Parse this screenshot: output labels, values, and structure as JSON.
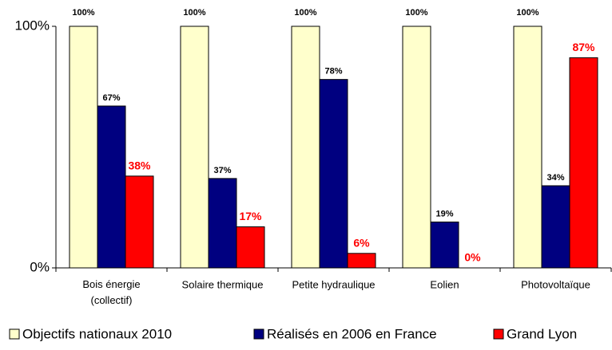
{
  "chart_data": {
    "type": "bar",
    "categories": [
      "Bois énergie\n(collectif)",
      "Solaire thermique",
      "Petite hydraulique",
      "Eolien",
      "Photovoltaïque"
    ],
    "series": [
      {
        "name": "Objectifs nationaux 2010",
        "color": "#ffffcc",
        "values": [
          100,
          100,
          100,
          100,
          100
        ],
        "value_labels": [
          "100%",
          "100%",
          "100%",
          "100%",
          "100%"
        ]
      },
      {
        "name": "Réalisés en 2006 en France",
        "color": "#000080",
        "values": [
          67,
          37,
          78,
          19,
          34
        ],
        "value_labels": [
          "67%",
          "37%",
          "78%",
          "19%",
          "34%"
        ]
      },
      {
        "name": "Grand Lyon",
        "color": "#ff0000",
        "values": [
          38,
          17,
          6,
          0,
          87
        ],
        "value_labels": [
          "38%",
          "17%",
          "6%",
          "0%",
          "87%"
        ]
      }
    ],
    "ylim": [
      0,
      100
    ],
    "yticks": [
      {
        "value": 0,
        "label": "0%"
      },
      {
        "value": 100,
        "label": "100%"
      }
    ],
    "legend": "bottom"
  }
}
